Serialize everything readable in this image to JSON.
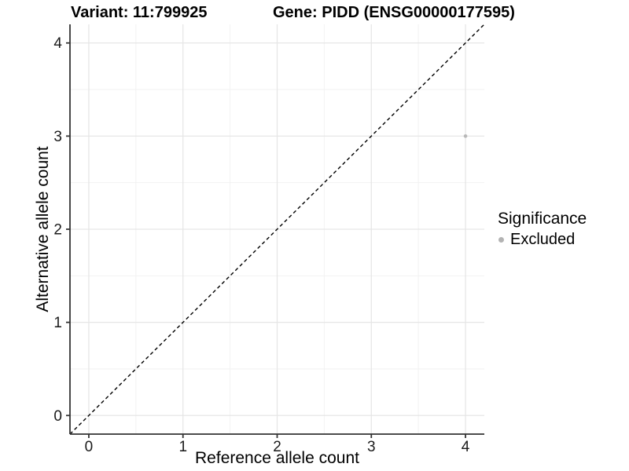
{
  "header": {
    "variant_title": "Variant: 11:799925",
    "gene_title": "Gene: PIDD (ENSG00000177595)"
  },
  "axes": {
    "x_label": "Reference allele count",
    "y_label": "Alternative allele count"
  },
  "legend": {
    "title": "Significance",
    "items": [
      {
        "label": "Excluded",
        "color": "#b3b3b3"
      }
    ]
  },
  "colors": {
    "background": "#ffffff",
    "grid_major": "#e6e6e6",
    "grid_minor": "#f2f2f2",
    "axis_line": "#333333",
    "tick_text": "#1a1a1a",
    "reference_line": "#000000",
    "point": "#b8b8b8"
  },
  "chart_data": {
    "type": "scatter",
    "title": "Variant: 11:799925    Gene: PIDD (ENSG00000177595)",
    "xlabel": "Reference allele count",
    "ylabel": "Alternative allele count",
    "xlim": [
      -0.2,
      4.2
    ],
    "ylim": [
      -0.2,
      4.2
    ],
    "x_ticks": [
      0,
      1,
      2,
      3,
      4
    ],
    "y_ticks": [
      0,
      1,
      2,
      3,
      4
    ],
    "x_minor_ticks": [
      0.5,
      1.5,
      2.5,
      3.5
    ],
    "y_minor_ticks": [
      0.5,
      1.5,
      2.5,
      3.5
    ],
    "grid": true,
    "legend_position": "right",
    "legend_title": "Significance",
    "series": [
      {
        "name": "Excluded",
        "color": "#b8b8b8",
        "points": [
          {
            "x": 4,
            "y": 3
          }
        ]
      }
    ],
    "reference_line": {
      "kind": "identity",
      "slope": 1,
      "intercept": 0,
      "style": "dashed",
      "color": "#000000"
    }
  }
}
